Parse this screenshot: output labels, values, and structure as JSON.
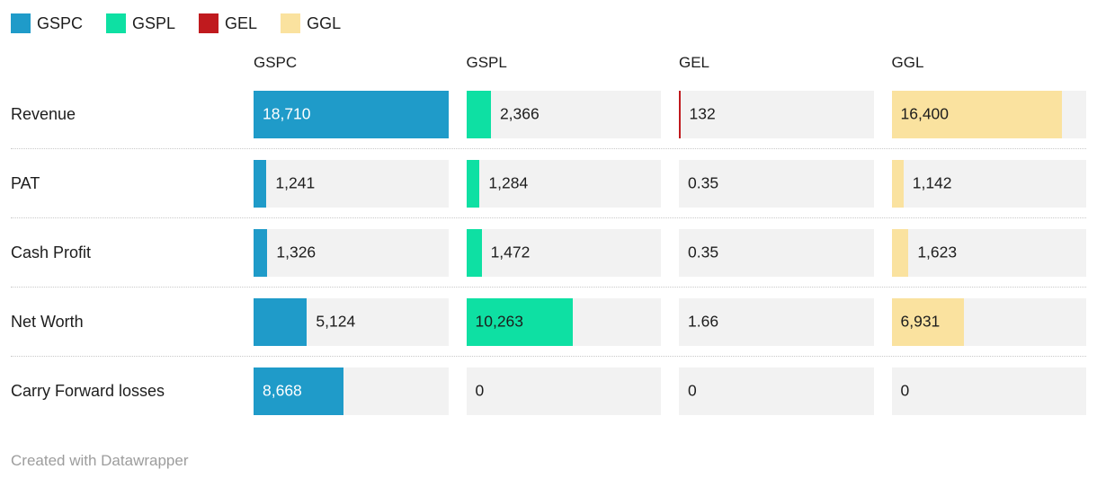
{
  "colors": {
    "background": "#ffffff",
    "cell_background": "#f2f2f2",
    "text": "#1d1d1d",
    "separator": "#c9c9c9",
    "footer_text": "#9d9d9d"
  },
  "legend": {
    "items": [
      {
        "label": "GSPC",
        "color": "#1f9bc9"
      },
      {
        "label": "GSPL",
        "color": "#0ee0a3"
      },
      {
        "label": "GEL",
        "color": "#c01a1e"
      },
      {
        "label": "GGL",
        "color": "#fae29f"
      }
    ]
  },
  "table": {
    "columns": [
      "GSPC",
      "GSPL",
      "GEL",
      "GGL"
    ],
    "max_value": 18710,
    "rows": [
      {
        "label": "Revenue",
        "values": [
          "18,710",
          "2,366",
          "132",
          "16,400"
        ],
        "numeric": [
          18710,
          2366,
          132,
          16400
        ]
      },
      {
        "label": "PAT",
        "values": [
          "1,241",
          "1,284",
          "0.35",
          "1,142"
        ],
        "numeric": [
          1241,
          1284,
          0.35,
          1142
        ]
      },
      {
        "label": "Cash Profit",
        "values": [
          "1,326",
          "1,472",
          "0.35",
          "1,623"
        ],
        "numeric": [
          1326,
          1472,
          0.35,
          1623
        ]
      },
      {
        "label": "Net Worth",
        "values": [
          "5,124",
          "10,263",
          "1.66",
          "6,931"
        ],
        "numeric": [
          5124,
          10263,
          1.66,
          6931
        ]
      },
      {
        "label": "Carry Forward losses",
        "values": [
          "8,668",
          "0",
          "0",
          "0"
        ],
        "numeric": [
          8668,
          0,
          0,
          0
        ]
      }
    ]
  },
  "footer": {
    "attribution": "Created with Datawrapper"
  },
  "chart_data": {
    "type": "bar",
    "subtype": "bar-table",
    "categories": [
      "Revenue",
      "PAT",
      "Cash Profit",
      "Net Worth",
      "Carry Forward losses"
    ],
    "series": [
      {
        "name": "GSPC",
        "color": "#1f9bc9",
        "values": [
          18710,
          1241,
          1326,
          5124,
          8668
        ]
      },
      {
        "name": "GSPL",
        "color": "#0ee0a3",
        "values": [
          2366,
          1284,
          1472,
          10263,
          0
        ]
      },
      {
        "name": "GEL",
        "color": "#c01a1e",
        "values": [
          132,
          0.35,
          0.35,
          1.66,
          0
        ]
      },
      {
        "name": "GGL",
        "color": "#fae29f",
        "values": [
          16400,
          1142,
          1623,
          6931,
          0
        ]
      }
    ],
    "title": "",
    "xlabel": "",
    "ylabel": "",
    "xlim": [
      0,
      18710
    ],
    "grid": false,
    "legend_position": "top",
    "attribution": "Created with Datawrapper"
  }
}
